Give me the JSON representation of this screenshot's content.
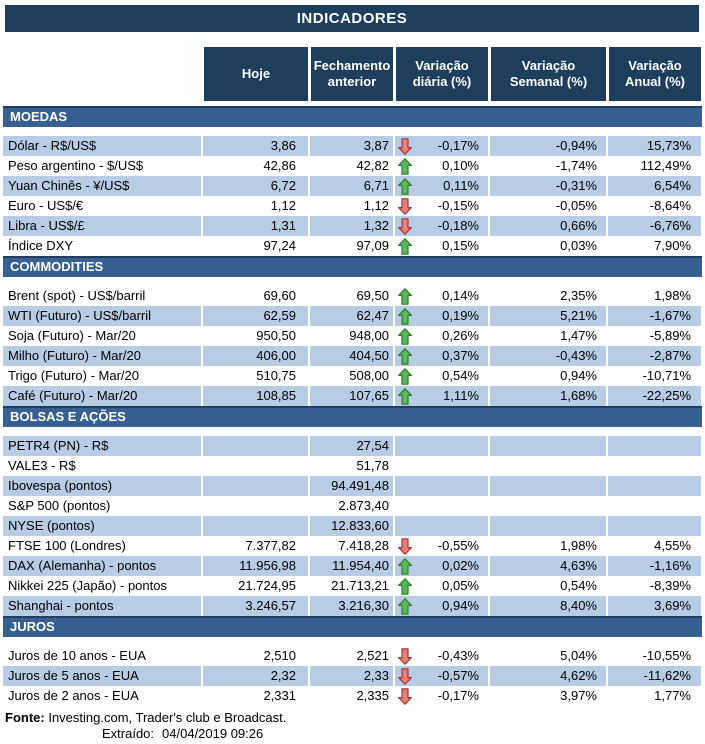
{
  "title": "INDICADORES",
  "columns": [
    "Hoje",
    "Fechamento anterior",
    "Variação diária (%)",
    "Variação Semanal (%)",
    "Variação Anual (%)"
  ],
  "sections": [
    {
      "name": "MOEDAS",
      "rows": [
        {
          "label": "Dólar - R$/US$",
          "hoje": "3,86",
          "fechamento": "3,87",
          "arrow": "down",
          "diaria": "-0,17%",
          "semanal": "-0,94%",
          "anual": "15,73%"
        },
        {
          "label": "Peso argentino - $/US$",
          "hoje": "42,86",
          "fechamento": "42,82",
          "arrow": "up",
          "diaria": "0,10%",
          "semanal": "-1,74%",
          "anual": "112,49%"
        },
        {
          "label": "Yuan Chinês - ¥/US$",
          "hoje": "6,72",
          "fechamento": "6,71",
          "arrow": "up",
          "diaria": "0,11%",
          "semanal": "-0,31%",
          "anual": "6,54%"
        },
        {
          "label": "Euro - US$/€",
          "hoje": "1,12",
          "fechamento": "1,12",
          "arrow": "down",
          "diaria": "-0,15%",
          "semanal": "-0,05%",
          "anual": "-8,64%"
        },
        {
          "label": "Libra - US$/£",
          "hoje": "1,31",
          "fechamento": "1,32",
          "arrow": "down",
          "diaria": "-0,18%",
          "semanal": "0,66%",
          "anual": "-6,76%"
        },
        {
          "label": "Índice DXY",
          "hoje": "97,24",
          "fechamento": "97,09",
          "arrow": "up",
          "diaria": "0,15%",
          "semanal": "0,03%",
          "anual": "7,90%"
        }
      ]
    },
    {
      "name": "COMMODITIES",
      "rows": [
        {
          "label": "Brent (spot) - US$/barril",
          "hoje": "69,60",
          "fechamento": "69,50",
          "arrow": "up",
          "diaria": "0,14%",
          "semanal": "2,35%",
          "anual": "1,98%"
        },
        {
          "label": "WTI (Futuro) - US$/barril",
          "hoje": "62,59",
          "fechamento": "62,47",
          "arrow": "up",
          "diaria": "0,19%",
          "semanal": "5,21%",
          "anual": "-1,67%"
        },
        {
          "label": "Soja (Futuro) - Mar/20",
          "hoje": "950,50",
          "fechamento": "948,00",
          "arrow": "up",
          "diaria": "0,26%",
          "semanal": "1,47%",
          "anual": "-5,89%"
        },
        {
          "label": "Milho (Futuro) - Mar/20",
          "hoje": "406,00",
          "fechamento": "404,50",
          "arrow": "up",
          "diaria": "0,37%",
          "semanal": "-0,43%",
          "anual": "-2,87%"
        },
        {
          "label": "Trigo (Futuro) - Mar/20",
          "hoje": "510,75",
          "fechamento": "508,00",
          "arrow": "up",
          "diaria": "0,54%",
          "semanal": "0,94%",
          "anual": "-10,71%"
        },
        {
          "label": "Café (Futuro) - Mar/20",
          "hoje": "108,85",
          "fechamento": "107,65",
          "arrow": "up",
          "diaria": "1,11%",
          "semanal": "1,68%",
          "anual": "-22,25%"
        }
      ]
    },
    {
      "name": "BOLSAS E AÇÕES",
      "rows": [
        {
          "label": "PETR4 (PN) - R$",
          "hoje": "",
          "fechamento": "27,54",
          "arrow": "",
          "diaria": "",
          "semanal": "",
          "anual": ""
        },
        {
          "label": "VALE3 - R$",
          "hoje": "",
          "fechamento": "51,78",
          "arrow": "",
          "diaria": "",
          "semanal": "",
          "anual": ""
        },
        {
          "label": "Ibovespa (pontos)",
          "hoje": "",
          "fechamento": "94.491,48",
          "arrow": "",
          "diaria": "",
          "semanal": "",
          "anual": ""
        },
        {
          "label": "S&P 500 (pontos)",
          "hoje": "",
          "fechamento": "2.873,40",
          "arrow": "",
          "diaria": "",
          "semanal": "",
          "anual": ""
        },
        {
          "label": "NYSE (pontos)",
          "hoje": "",
          "fechamento": "12.833,60",
          "arrow": "",
          "diaria": "",
          "semanal": "",
          "anual": ""
        },
        {
          "label": "FTSE 100 (Londres)",
          "hoje": "7.377,82",
          "fechamento": "7.418,28",
          "arrow": "down",
          "diaria": "-0,55%",
          "semanal": "1,98%",
          "anual": "4,55%"
        },
        {
          "label": "DAX (Alemanha) - pontos",
          "hoje": "11.956,98",
          "fechamento": "11.954,40",
          "arrow": "up",
          "diaria": "0,02%",
          "semanal": "4,63%",
          "anual": "-1,16%"
        },
        {
          "label": "Nikkei 225 (Japão) - pontos",
          "hoje": "21.724,95",
          "fechamento": "21.713,21",
          "arrow": "up",
          "diaria": "0,05%",
          "semanal": "0,54%",
          "anual": "-8,39%"
        },
        {
          "label": "Shanghai - pontos",
          "hoje": "3.246,57",
          "fechamento": "3.216,30",
          "arrow": "up",
          "diaria": "0,94%",
          "semanal": "8,40%",
          "anual": "3,69%"
        }
      ]
    },
    {
      "name": "JUROS",
      "rows": [
        {
          "label": "Juros de 10 anos - EUA",
          "hoje": "2,510",
          "fechamento": "2,521",
          "arrow": "down",
          "diaria": "-0,43%",
          "semanal": "5,04%",
          "anual": "-10,55%"
        },
        {
          "label": "Juros de 5 anos - EUA",
          "hoje": "2,32",
          "fechamento": "2,33",
          "arrow": "down",
          "diaria": "-0,57%",
          "semanal": "4,62%",
          "anual": "-11,62%"
        },
        {
          "label": "Juros de 2 anos - EUA",
          "hoje": "2,331",
          "fechamento": "2,335",
          "arrow": "down",
          "diaria": "-0,17%",
          "semanal": "3,97%",
          "anual": "1,77%"
        }
      ]
    }
  ],
  "footer": {
    "fonte_label": "Fonte:",
    "fonte_text": " Investing.com, Trader's club e Broadcast.",
    "extraido_label": "Extraído:",
    "extraido_value": "04/04/2019 09:26"
  },
  "theme": {
    "header_navy": "#1F3D5C",
    "section_blue": "#366092",
    "row_light_blue": "#B8CCE4",
    "arrow_up_fill": "#5BB75B",
    "arrow_up_border": "#2E7D32",
    "arrow_down_fill": "#E2807D",
    "arrow_down_border": "#A03733"
  }
}
